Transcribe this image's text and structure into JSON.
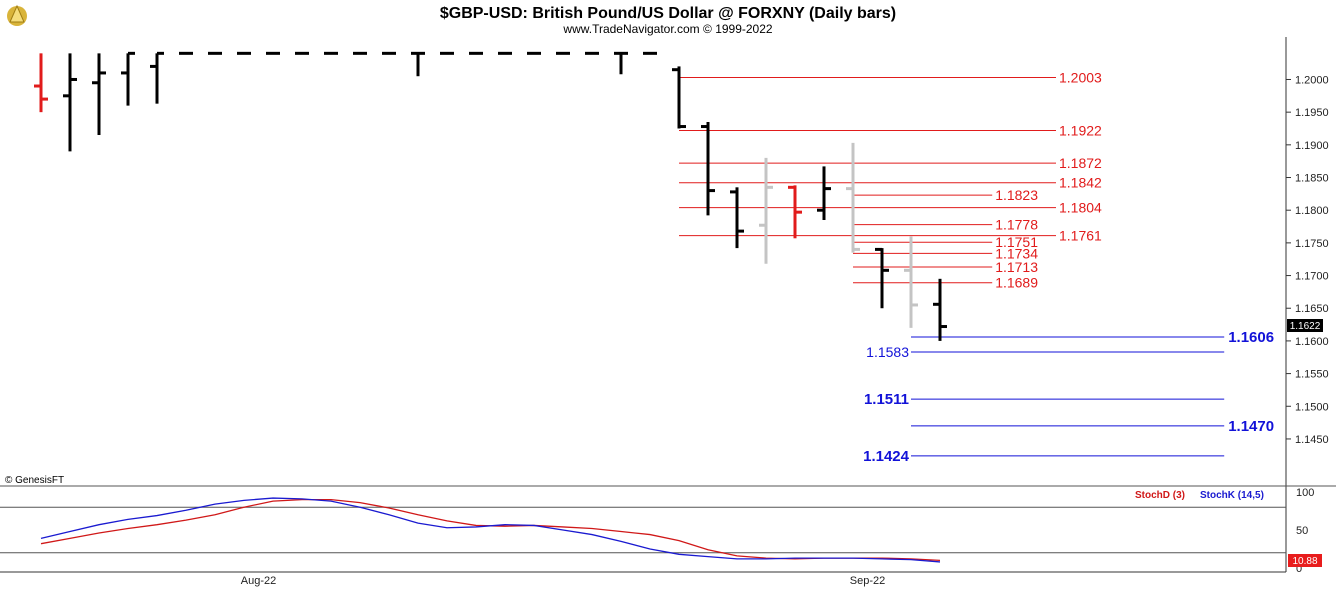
{
  "header": {
    "title": "$GBP-USD:  British Pound/US Dollar @ FORXNY  (Daily bars)",
    "subtitle": "www.TradeNavigator.com © 1999-2022"
  },
  "watermark": "© GenesisFT",
  "last_price_label": "1.1622",
  "stoch_last_label": "10.88",
  "colors": {
    "up": "#000000",
    "down": "#e11b1b",
    "neutral": "#c4c4c4",
    "red_level": "#e11b1b",
    "blue_level": "#1212d8",
    "stoch_d": "#d01818",
    "stoch_k": "#1a1ad0"
  },
  "chart_data": [
    {
      "type": "ohlc",
      "title": "$GBP-USD:  British Pound/US Dollar @ FORXNY  (Daily bars)",
      "ylim": [
        1.1378,
        1.2065
      ],
      "y_ticks": [
        "1.2000",
        "1.1950",
        "1.1900",
        "1.1850",
        "1.1800",
        "1.1750",
        "1.1700",
        "1.1650",
        "1.1600",
        "1.1550",
        "1.1500",
        "1.1450"
      ],
      "x_labels": [
        {
          "label": "Aug-22",
          "bar": 7.5
        },
        {
          "label": "Sep-22",
          "bar": 28.5
        }
      ],
      "bars": [
        {
          "o": 1.199,
          "h": 1.204,
          "l": 1.195,
          "c": 1.197,
          "color": "down"
        },
        {
          "o": 1.1975,
          "h": 1.204,
          "l": 1.189,
          "c": 1.2,
          "color": "up"
        },
        {
          "o": 1.1995,
          "h": 1.204,
          "l": 1.1915,
          "c": 1.201,
          "color": "up"
        },
        {
          "o": 1.201,
          "h": 1.204,
          "l": 1.196,
          "c": 1.204,
          "color": "up"
        },
        {
          "o": 1.202,
          "h": 1.204,
          "l": 1.1963,
          "c": 1.204,
          "color": "up"
        },
        {
          "o": 1.204,
          "h": 1.204,
          "l": 1.204,
          "c": 1.204,
          "color": "up"
        },
        {
          "o": 1.204,
          "h": 1.204,
          "l": 1.204,
          "c": 1.204,
          "color": "up"
        },
        {
          "o": 1.204,
          "h": 1.204,
          "l": 1.204,
          "c": 1.204,
          "color": "up"
        },
        {
          "o": 1.204,
          "h": 1.204,
          "l": 1.204,
          "c": 1.204,
          "color": "up"
        },
        {
          "o": 1.204,
          "h": 1.204,
          "l": 1.204,
          "c": 1.204,
          "color": "up"
        },
        {
          "o": 1.204,
          "h": 1.204,
          "l": 1.204,
          "c": 1.204,
          "color": "up"
        },
        {
          "o": 1.204,
          "h": 1.204,
          "l": 1.204,
          "c": 1.204,
          "color": "up"
        },
        {
          "o": 1.204,
          "h": 1.204,
          "l": 1.204,
          "c": 1.204,
          "color": "up"
        },
        {
          "o": 1.204,
          "h": 1.204,
          "l": 1.2005,
          "c": 1.204,
          "color": "up"
        },
        {
          "o": 1.204,
          "h": 1.204,
          "l": 1.204,
          "c": 1.204,
          "color": "up"
        },
        {
          "o": 1.204,
          "h": 1.204,
          "l": 1.204,
          "c": 1.204,
          "color": "up"
        },
        {
          "o": 1.204,
          "h": 1.204,
          "l": 1.204,
          "c": 1.204,
          "color": "up"
        },
        {
          "o": 1.204,
          "h": 1.204,
          "l": 1.204,
          "c": 1.204,
          "color": "up"
        },
        {
          "o": 1.204,
          "h": 1.204,
          "l": 1.204,
          "c": 1.204,
          "color": "up"
        },
        {
          "o": 1.204,
          "h": 1.204,
          "l": 1.204,
          "c": 1.204,
          "color": "up"
        },
        {
          "o": 1.204,
          "h": 1.204,
          "l": 1.2008,
          "c": 1.204,
          "color": "up"
        },
        {
          "o": 1.204,
          "h": 1.204,
          "l": 1.204,
          "c": 1.204,
          "color": "up"
        },
        {
          "o": 1.2015,
          "h": 1.202,
          "l": 1.1925,
          "c": 1.1928,
          "color": "up"
        },
        {
          "o": 1.1928,
          "h": 1.1935,
          "l": 1.1792,
          "c": 1.183,
          "color": "up"
        },
        {
          "o": 1.1828,
          "h": 1.1835,
          "l": 1.1742,
          "c": 1.1768,
          "color": "up"
        },
        {
          "o": 1.1777,
          "h": 1.188,
          "l": 1.1718,
          "c": 1.1835,
          "color": "neutral"
        },
        {
          "o": 1.1835,
          "h": 1.1838,
          "l": 1.1757,
          "c": 1.1797,
          "color": "down"
        },
        {
          "o": 1.18,
          "h": 1.1867,
          "l": 1.1785,
          "c": 1.1833,
          "color": "up"
        },
        {
          "o": 1.1833,
          "h": 1.1903,
          "l": 1.1735,
          "c": 1.174,
          "color": "neutral"
        },
        {
          "o": 1.174,
          "h": 1.1742,
          "l": 1.165,
          "c": 1.1708,
          "color": "up"
        },
        {
          "o": 1.1708,
          "h": 1.176,
          "l": 1.162,
          "c": 1.1655,
          "color": "neutral"
        },
        {
          "o": 1.1656,
          "h": 1.1695,
          "l": 1.16,
          "c": 1.1622,
          "color": "up"
        }
      ],
      "levels": [
        {
          "value": 1.2003,
          "label": "1.2003",
          "color": "red",
          "x_from": 22,
          "x_to": 35
        },
        {
          "value": 1.1922,
          "label": "1.1922",
          "color": "red",
          "x_from": 22,
          "x_to": 35
        },
        {
          "value": 1.1872,
          "label": "1.1872",
          "color": "red",
          "x_from": 22,
          "x_to": 35
        },
        {
          "value": 1.1842,
          "label": "1.1842",
          "color": "red",
          "x_from": 22,
          "x_to": 35
        },
        {
          "value": 1.1823,
          "label": "1.1823",
          "color": "red",
          "x_from": 28,
          "x_to": 32.8
        },
        {
          "value": 1.1804,
          "label": "1.1804",
          "color": "red",
          "x_from": 22,
          "x_to": 35
        },
        {
          "value": 1.1778,
          "label": "1.1778",
          "color": "red",
          "x_from": 28,
          "x_to": 32.8
        },
        {
          "value": 1.1761,
          "label": "1.1761",
          "color": "red",
          "x_from": 22,
          "x_to": 35
        },
        {
          "value": 1.1751,
          "label": "1.1751",
          "color": "red",
          "x_from": 28,
          "x_to": 32.8
        },
        {
          "value": 1.1734,
          "label": "1.1734",
          "color": "red",
          "x_from": 28,
          "x_to": 32.8
        },
        {
          "value": 1.1713,
          "label": "1.1713",
          "color": "red",
          "x_from": 28,
          "x_to": 32.8
        },
        {
          "value": 1.1689,
          "label": "1.1689",
          "color": "red",
          "x_from": 28,
          "x_to": 32.8
        },
        {
          "value": 1.1606,
          "label": "1.1606",
          "color": "blue",
          "bold": true,
          "x_from": 30,
          "x_to": 40.8
        },
        {
          "value": 1.1583,
          "label": "1.1583",
          "color": "blue",
          "bold": false,
          "x_from": 30,
          "x_to": 40.8
        },
        {
          "value": 1.1511,
          "label": "1.1511",
          "color": "blue",
          "bold": true,
          "x_from": 30,
          "x_to": 40.8
        },
        {
          "value": 1.147,
          "label": "1.1470",
          "color": "blue",
          "bold": true,
          "x_from": 30,
          "x_to": 40.8
        },
        {
          "value": 1.1424,
          "label": "1.1424",
          "color": "blue",
          "bold": true,
          "x_from": 30,
          "x_to": 40.8
        }
      ]
    },
    {
      "type": "line",
      "title": "Stochastic",
      "ylim": [
        0,
        100
      ],
      "y_ticks": [
        "100",
        "50",
        "0"
      ],
      "reference_lines": [
        80,
        20
      ],
      "x": [
        0,
        1,
        2,
        3,
        4,
        5,
        6,
        7,
        8,
        9,
        10,
        11,
        12,
        13,
        14,
        15,
        16,
        17,
        18,
        19,
        20,
        21,
        22,
        23,
        24,
        25,
        26,
        27,
        28,
        29,
        30,
        31
      ],
      "series": [
        {
          "name": "StochD (3)",
          "color": "stoch_d",
          "values": [
            32,
            39,
            46,
            52,
            57,
            63,
            70,
            80,
            88,
            90,
            90,
            86,
            79,
            70,
            62,
            56,
            55,
            56,
            54,
            52,
            48,
            44,
            36,
            24,
            16,
            13,
            12,
            13,
            13,
            13,
            12,
            10
          ]
        },
        {
          "name": "StochK (14,5)",
          "color": "stoch_k",
          "values": [
            39,
            48,
            57,
            64,
            69,
            76,
            84,
            89,
            92,
            91,
            88,
            80,
            70,
            59,
            53,
            54,
            57,
            56,
            50,
            44,
            35,
            25,
            18,
            15,
            12,
            12,
            13,
            13,
            13,
            12,
            11,
            8
          ]
        }
      ]
    }
  ]
}
